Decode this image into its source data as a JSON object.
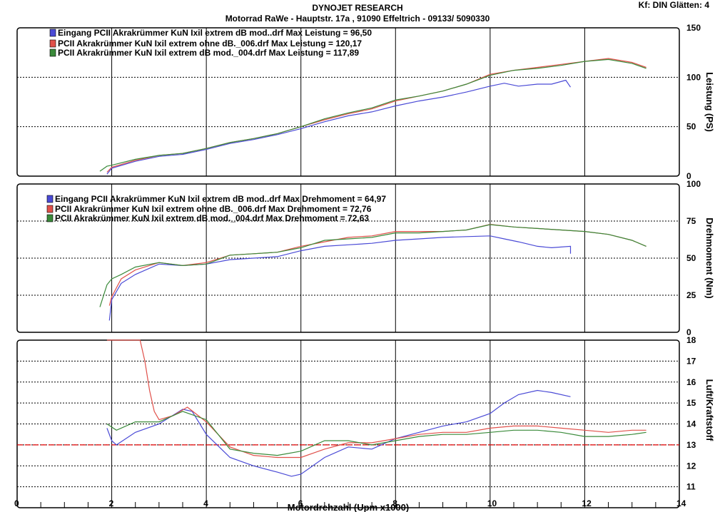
{
  "header": {
    "title": "DYNOJET RESEARCH",
    "subtitle": "Motorrad RaWe  - Hauptstr. 17a , 91090 Effeltrich - 09133/ 5090330",
    "kf": "Kf: DIN  Glätten: 4"
  },
  "colors": {
    "blue": "#4a4ad6",
    "red": "#e0504a",
    "green": "#3a8a3a",
    "ref": "#e00000"
  },
  "chart_data": [
    {
      "type": "line",
      "id": "power",
      "ylabel": "Leistung (PS)",
      "ylim": [
        0,
        150
      ],
      "yticks": [
        0,
        50,
        100,
        150
      ],
      "xlim": [
        0,
        14
      ],
      "grid": true,
      "legend": [
        "Eingang PCII Akrakrümmer KuN Ixil extrem dB mod..drf Max Leistung = 96,50",
        "PCII Akrakrümmer KuN Ixil extrem ohne dB._006.drf Max Leistung = 120,17",
        "PCII Akrakrümmer KuN Ixil extrem dB mod._004.drf Max Leistung = 117,89"
      ],
      "series": [
        {
          "name": "Eingang PCII Akrakrümmer KuN Ixil extrem dB mod..drf",
          "color": "blue",
          "x": [
            1.9,
            2.0,
            2.5,
            3.0,
            3.5,
            4.0,
            4.5,
            5.0,
            5.5,
            6.0,
            6.5,
            7.0,
            7.5,
            8.0,
            8.5,
            9.0,
            9.5,
            10.0,
            10.3,
            10.6,
            11.0,
            11.3,
            11.6,
            11.7
          ],
          "y": [
            2,
            8,
            15,
            20,
            22,
            27,
            33,
            37,
            42,
            48,
            55,
            61,
            65,
            71,
            76,
            80,
            85,
            91,
            94,
            91,
            93,
            93,
            97,
            90
          ]
        },
        {
          "name": "PCII Akrakrümmer KuN Ixil extrem ohne dB._006",
          "color": "red",
          "x": [
            1.9,
            2.0,
            2.5,
            3.0,
            3.5,
            4.0,
            4.5,
            5.0,
            5.5,
            6.0,
            6.5,
            7.0,
            7.5,
            8.0,
            8.5,
            9.0,
            9.5,
            10.0,
            10.5,
            11.0,
            11.5,
            12.0,
            12.5,
            13.0,
            13.3
          ],
          "y": [
            4,
            9,
            16,
            21,
            23,
            28,
            34,
            38,
            43,
            50,
            57,
            63,
            68,
            76,
            81,
            86,
            93,
            103,
            107,
            110,
            113,
            116,
            119,
            115,
            110
          ]
        },
        {
          "name": "PCII Akrakrümmer KuN Ixil extrem dB mod._004",
          "color": "green",
          "x": [
            1.75,
            1.9,
            2.0,
            2.5,
            3.0,
            3.5,
            4.0,
            4.5,
            5.0,
            5.5,
            6.0,
            6.5,
            7.0,
            7.5,
            8.0,
            8.5,
            9.0,
            9.5,
            10.0,
            10.5,
            11.0,
            11.5,
            12.0,
            12.5,
            13.0,
            13.3
          ],
          "y": [
            5,
            10,
            11,
            17,
            21,
            23,
            28,
            34,
            38,
            43,
            50,
            58,
            64,
            69,
            77,
            81,
            86,
            93,
            102,
            107,
            109,
            112,
            116,
            118,
            114,
            109
          ]
        }
      ]
    },
    {
      "type": "line",
      "id": "torque",
      "ylabel": "Drehmoment (Nm)",
      "ylim": [
        0,
        100
      ],
      "yticks": [
        0,
        25,
        50,
        75,
        100
      ],
      "xlim": [
        0,
        14
      ],
      "grid": true,
      "legend": [
        "Eingang PCII Akrakrümmer KuN Ixil extrem dB mod..drf Max Drehmoment = 64,97",
        "PCII Akrakrümmer KuN Ixil extrem ohne dB._006.drf Max Drehmoment = 72,76",
        "PCII Akrakrümmer KuN Ixil extrem dB mod._004.drf Max Drehmoment = 72,63"
      ],
      "series": [
        {
          "name": "Eingang PCII Akrakrümmer KuN Ixil extrem dB mod..drf",
          "color": "blue",
          "x": [
            1.95,
            2.0,
            2.2,
            2.5,
            3.0,
            3.5,
            4.0,
            4.5,
            5.0,
            5.5,
            6.0,
            6.5,
            7.0,
            7.5,
            8.0,
            8.5,
            9.0,
            9.5,
            10.0,
            10.3,
            10.6,
            11.0,
            11.3,
            11.7,
            11.7
          ],
          "y": [
            8,
            22,
            33,
            39,
            46,
            45,
            46,
            49,
            50,
            51,
            55,
            58,
            59,
            60,
            62,
            63,
            64,
            64.5,
            65,
            63,
            61,
            58,
            57,
            58,
            53
          ]
        },
        {
          "name": "PCII Akrakrümmer KuN Ixil extrem ohne dB._006",
          "color": "red",
          "x": [
            1.95,
            2.0,
            2.2,
            2.5,
            3.0,
            3.5,
            4.0,
            4.5,
            5.0,
            5.5,
            6.0,
            6.5,
            7.0,
            7.5,
            8.0,
            8.5,
            9.0,
            9.5,
            10.0,
            10.5,
            11.0,
            11.5,
            12.0,
            12.5,
            13.0,
            13.3
          ],
          "y": [
            18,
            24,
            36,
            42,
            47,
            45,
            47,
            52,
            53,
            54,
            58,
            61,
            64,
            65,
            68,
            68,
            68,
            69,
            72.8,
            71,
            70,
            69,
            68,
            66,
            62,
            58
          ]
        },
        {
          "name": "PCII Akrakrümmer KuN Ixil extrem dB mod._004",
          "color": "green",
          "x": [
            1.75,
            1.9,
            2.0,
            2.2,
            2.5,
            3.0,
            3.5,
            4.0,
            4.5,
            5.0,
            5.5,
            6.0,
            6.5,
            7.0,
            7.5,
            8.0,
            8.5,
            9.0,
            9.5,
            10.0,
            10.5,
            11.0,
            11.5,
            12.0,
            12.5,
            13.0,
            13.3
          ],
          "y": [
            17,
            32,
            36,
            39,
            44,
            47,
            45,
            46,
            52,
            53,
            54,
            57,
            62,
            63,
            64,
            67,
            67,
            68,
            69,
            72.6,
            71,
            70,
            69,
            68,
            66,
            62,
            58
          ]
        }
      ]
    },
    {
      "type": "line",
      "id": "afr",
      "ylabel": "Luft/Kraftstoff",
      "xlabel": "Motordrehzahl (Upm x1000)",
      "ylim": [
        10,
        18
      ],
      "yticks": [
        11,
        12,
        13,
        14,
        15,
        16,
        17,
        18
      ],
      "xlim": [
        0,
        14
      ],
      "xticks": [
        0,
        2,
        4,
        6,
        8,
        10,
        12,
        14
      ],
      "grid": true,
      "reference": 13,
      "series": [
        {
          "name": "Eingang PCII Akrakrümmer KuN Ixil extrem dB mod..drf",
          "color": "blue",
          "x": [
            1.9,
            2.0,
            2.1,
            2.5,
            3.0,
            3.5,
            3.7,
            4.0,
            4.5,
            5.0,
            5.5,
            5.8,
            6.0,
            6.5,
            7.0,
            7.5,
            8.0,
            8.5,
            9.0,
            9.5,
            10.0,
            10.3,
            10.6,
            11.0,
            11.3,
            11.7
          ],
          "y": [
            13.8,
            13.2,
            13.0,
            13.6,
            14.0,
            14.7,
            14.6,
            13.5,
            12.4,
            12.0,
            11.7,
            11.5,
            11.6,
            12.4,
            12.9,
            12.8,
            13.3,
            13.6,
            13.9,
            14.1,
            14.5,
            15.0,
            15.4,
            15.6,
            15.5,
            15.3
          ]
        },
        {
          "name": "PCII Akrakrümmer KuN Ixil extrem ohne dB._006",
          "color": "red",
          "x": [
            1.9,
            2.6,
            2.7,
            2.8,
            2.9,
            3.0,
            3.3,
            3.6,
            4.0,
            4.5,
            5.0,
            5.5,
            6.0,
            6.5,
            7.0,
            7.5,
            8.0,
            8.5,
            9.0,
            9.5,
            10.0,
            10.5,
            11.0,
            11.5,
            12.0,
            12.5,
            13.0,
            13.3
          ],
          "y": [
            18,
            18,
            17.0,
            15.6,
            14.6,
            14.2,
            14.4,
            14.8,
            14.1,
            12.9,
            12.5,
            12.4,
            12.4,
            12.8,
            13.1,
            13.1,
            13.3,
            13.5,
            13.6,
            13.6,
            13.8,
            13.9,
            13.9,
            13.8,
            13.7,
            13.6,
            13.7,
            13.7
          ]
        },
        {
          "name": "PCII Akrakrümmer KuN Ixil extrem dB mod._004",
          "color": "green",
          "x": [
            1.9,
            2.1,
            2.5,
            3.0,
            3.5,
            4.0,
            4.5,
            5.0,
            5.5,
            6.0,
            6.5,
            7.0,
            7.5,
            8.0,
            8.5,
            9.0,
            9.5,
            10.0,
            10.5,
            11.0,
            11.5,
            12.0,
            12.5,
            13.0,
            13.3
          ],
          "y": [
            14.0,
            13.7,
            14.1,
            14.1,
            14.6,
            14.2,
            12.8,
            12.6,
            12.5,
            12.7,
            13.2,
            13.2,
            13.0,
            13.2,
            13.4,
            13.5,
            13.5,
            13.6,
            13.7,
            13.7,
            13.6,
            13.4,
            13.4,
            13.5,
            13.6
          ]
        }
      ]
    }
  ]
}
